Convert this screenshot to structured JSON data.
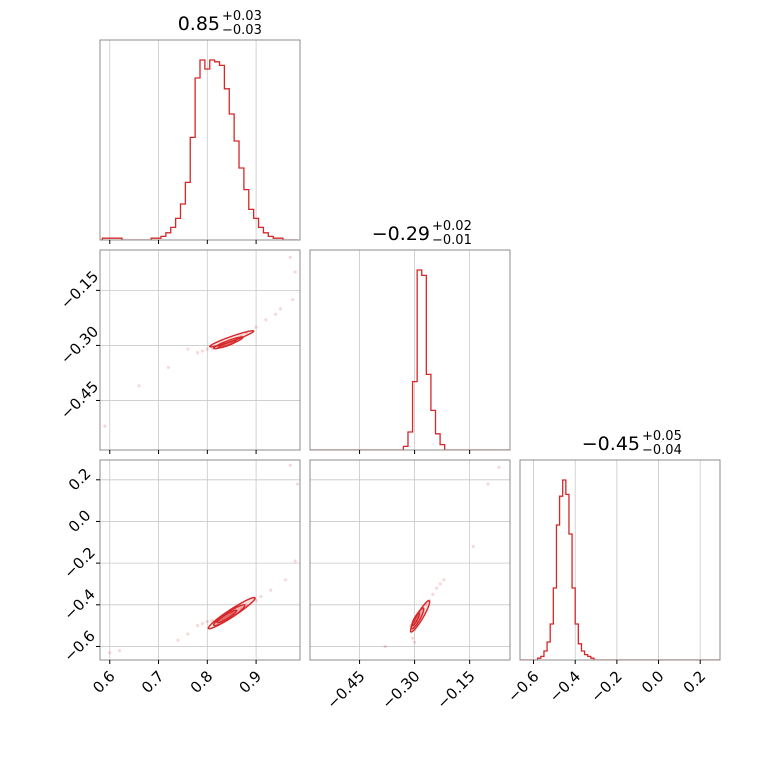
{
  "figure": {
    "type": "corner-plot",
    "accent_color": "#d62728"
  },
  "parameters": [
    {
      "median": "0.85",
      "plus": "+0.03",
      "minus": "−0.03",
      "range": [
        0.58,
        0.99
      ],
      "ticks": [
        0.6,
        0.7,
        0.8,
        0.9
      ],
      "tick_labels": [
        "0.6",
        "0.7",
        "0.8",
        "0.9"
      ]
    },
    {
      "median": "−0.29",
      "plus": "+0.02",
      "minus": "−0.01",
      "range": [
        -0.585,
        -0.04
      ],
      "ticks": [
        -0.45,
        -0.3,
        -0.15
      ],
      "tick_labels": [
        "−0.45",
        "−0.30",
        "−0.15"
      ]
    },
    {
      "median": "−0.45",
      "plus": "+0.05",
      "minus": "−0.04",
      "range": [
        -0.665,
        0.295
      ],
      "ticks": [
        -0.6,
        -0.4,
        -0.2,
        0.0,
        0.2
      ],
      "tick_labels": [
        "−0.6",
        "−0.4",
        "−0.2",
        "0.0",
        "0.2"
      ]
    }
  ],
  "chart_data": [
    {
      "type": "histogram",
      "panel": "p0-hist",
      "param": 0,
      "grid": true,
      "bins": [
        0.575,
        0.585,
        0.595,
        0.605,
        0.615,
        0.625,
        0.635,
        0.645,
        0.655,
        0.665,
        0.675,
        0.685,
        0.695,
        0.705,
        0.715,
        0.725,
        0.735,
        0.745,
        0.755,
        0.765,
        0.775,
        0.785,
        0.795,
        0.805,
        0.815,
        0.825,
        0.835,
        0.845,
        0.855,
        0.865,
        0.875,
        0.885,
        0.895,
        0.905,
        0.915,
        0.925,
        0.935,
        0.945,
        0.955,
        0.965,
        0.975,
        0.985
      ],
      "counts": [
        0,
        1,
        1,
        1,
        1,
        0,
        0,
        0,
        0,
        0,
        0,
        1,
        1,
        2,
        4,
        7,
        12,
        20,
        32,
        57,
        90,
        100,
        95,
        100,
        99,
        97,
        84,
        70,
        55,
        40,
        28,
        17,
        12,
        7,
        4,
        2,
        1,
        1,
        0,
        0,
        0
      ]
    },
    {
      "type": "histogram",
      "panel": "p1-hist",
      "param": 1,
      "grid": true,
      "bins": [
        -0.585,
        -0.3305,
        -0.318,
        -0.3055,
        -0.293,
        -0.2805,
        -0.268,
        -0.2555,
        -0.243,
        -0.2305,
        -0.218,
        -0.04
      ],
      "counts": [
        0,
        2,
        10,
        38,
        100,
        97,
        42,
        22,
        9,
        3,
        0
      ]
    },
    {
      "type": "histogram",
      "panel": "p2-hist",
      "param": 2,
      "grid": true,
      "bins": [
        -0.665,
        -0.58,
        -0.565,
        -0.55,
        -0.535,
        -0.52,
        -0.505,
        -0.49,
        -0.475,
        -0.46,
        -0.445,
        -0.43,
        -0.415,
        -0.4,
        -0.385,
        -0.37,
        -0.355,
        -0.34,
        -0.325,
        -0.31,
        0.295
      ],
      "counts": [
        0,
        1,
        2,
        5,
        10,
        20,
        40,
        75,
        91,
        100,
        92,
        70,
        40,
        20,
        9,
        5,
        3,
        2,
        1,
        0
      ]
    },
    {
      "type": "scatter",
      "panel": "p0-vs-p1",
      "x_param": 0,
      "y_param": 1,
      "grid": true,
      "contours": [
        {
          "center": [
            0.841,
            -0.297
          ],
          "sigma": [
            0.018,
            0.0095
          ],
          "rho": 0.9
        },
        {
          "center": [
            0.843,
            -0.293
          ],
          "sigma": [
            0.03,
            0.016
          ],
          "rho": 0.92
        },
        {
          "center": [
            0.85,
            -0.282
          ],
          "sigma": [
            0.045,
            0.022
          ],
          "rho": 0.95
        }
      ],
      "points": [
        [
          0.8,
          -0.31
        ],
        [
          0.82,
          -0.305
        ],
        [
          0.86,
          -0.28
        ],
        [
          0.9,
          -0.25
        ],
        [
          0.94,
          -0.215
        ],
        [
          0.79,
          -0.315
        ],
        [
          0.88,
          -0.265
        ],
        [
          0.83,
          -0.3
        ],
        [
          0.87,
          -0.275
        ],
        [
          0.92,
          -0.23
        ],
        [
          0.81,
          -0.308
        ],
        [
          0.85,
          -0.29
        ],
        [
          0.95,
          -0.2
        ],
        [
          0.78,
          -0.32
        ],
        [
          0.76,
          -0.31
        ],
        [
          0.72,
          -0.36
        ],
        [
          0.66,
          -0.41
        ],
        [
          0.59,
          -0.52
        ],
        [
          0.98,
          -0.1
        ],
        [
          0.97,
          -0.06
        ],
        [
          0.975,
          -0.175
        ]
      ]
    },
    {
      "type": "scatter",
      "panel": "p0-vs-p2",
      "x_param": 0,
      "y_param": 2,
      "grid": true,
      "contours": [
        {
          "center": [
            0.84,
            -0.456
          ],
          "sigma": [
            0.02,
            0.03
          ],
          "rho": 0.92
        },
        {
          "center": [
            0.845,
            -0.45
          ],
          "sigma": [
            0.032,
            0.05
          ],
          "rho": 0.93
        },
        {
          "center": [
            0.85,
            -0.44
          ],
          "sigma": [
            0.048,
            0.075
          ],
          "rho": 0.96
        }
      ],
      "points": [
        [
          0.78,
          -0.5
        ],
        [
          0.8,
          -0.48
        ],
        [
          0.83,
          -0.46
        ],
        [
          0.87,
          -0.42
        ],
        [
          0.9,
          -0.38
        ],
        [
          0.93,
          -0.33
        ],
        [
          0.96,
          -0.28
        ],
        [
          0.76,
          -0.54
        ],
        [
          0.74,
          -0.57
        ],
        [
          0.82,
          -0.47
        ],
        [
          0.88,
          -0.4
        ],
        [
          0.85,
          -0.44
        ],
        [
          0.79,
          -0.49
        ],
        [
          0.91,
          -0.36
        ],
        [
          0.81,
          -0.475
        ],
        [
          0.62,
          -0.62
        ],
        [
          0.6,
          -0.63
        ],
        [
          0.98,
          -0.19
        ],
        [
          0.97,
          0.27
        ],
        [
          0.985,
          0.18
        ]
      ]
    },
    {
      "type": "scatter",
      "panel": "p1-vs-p2",
      "x_param": 1,
      "y_param": 2,
      "grid": true,
      "contours": [
        {
          "center": [
            -0.297,
            -0.47
          ],
          "sigma": [
            0.01,
            0.03
          ],
          "rho": 0.85
        },
        {
          "center": [
            -0.292,
            -0.465
          ],
          "sigma": [
            0.017,
            0.05
          ],
          "rho": 0.88
        },
        {
          "center": [
            -0.285,
            -0.455
          ],
          "sigma": [
            0.026,
            0.075
          ],
          "rho": 0.92
        }
      ],
      "points": [
        [
          -0.3,
          -0.5
        ],
        [
          -0.29,
          -0.46
        ],
        [
          -0.28,
          -0.42
        ],
        [
          -0.26,
          -0.38
        ],
        [
          -0.24,
          -0.32
        ],
        [
          -0.22,
          -0.28
        ],
        [
          -0.31,
          -0.53
        ],
        [
          -0.305,
          -0.56
        ],
        [
          -0.295,
          -0.48
        ],
        [
          -0.27,
          -0.4
        ],
        [
          -0.285,
          -0.44
        ],
        [
          -0.25,
          -0.35
        ],
        [
          -0.31,
          -0.5
        ],
        [
          -0.3,
          -0.52
        ],
        [
          -0.14,
          -0.12
        ],
        [
          -0.1,
          0.18
        ],
        [
          -0.07,
          0.26
        ],
        [
          -0.38,
          -0.6
        ],
        [
          -0.3,
          -0.58
        ],
        [
          -0.23,
          -0.3
        ]
      ]
    }
  ]
}
